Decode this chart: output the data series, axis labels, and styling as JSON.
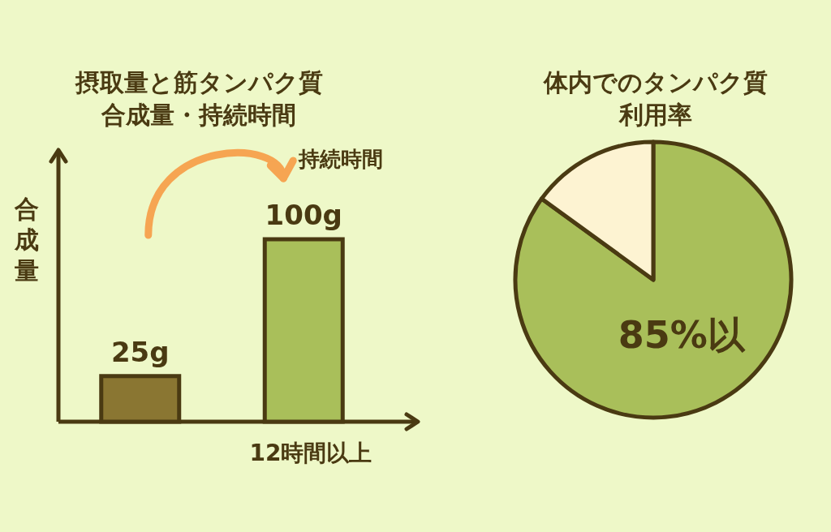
{
  "chart_data": [
    {
      "type": "bar",
      "title": "摂取量と筋タンパク質合成量・持続時間",
      "ylabel": "合成量",
      "xlabel": "12時間以上",
      "categories": [
        null,
        null
      ],
      "values": [
        25,
        100
      ],
      "colors": [
        "#8a7632",
        "#a9bf5a"
      ],
      "value_labels": [
        "25g",
        "100g"
      ],
      "annotations": [
        "持続時間"
      ]
    },
    {
      "type": "pie",
      "title": "体内でのタンパク質利用率",
      "categories": [
        null,
        null
      ],
      "values": [
        85,
        15
      ],
      "colors": [
        "#a9bf5a",
        "#fdf3d2"
      ],
      "value_labels": [
        "85%以",
        null
      ]
    }
  ]
}
